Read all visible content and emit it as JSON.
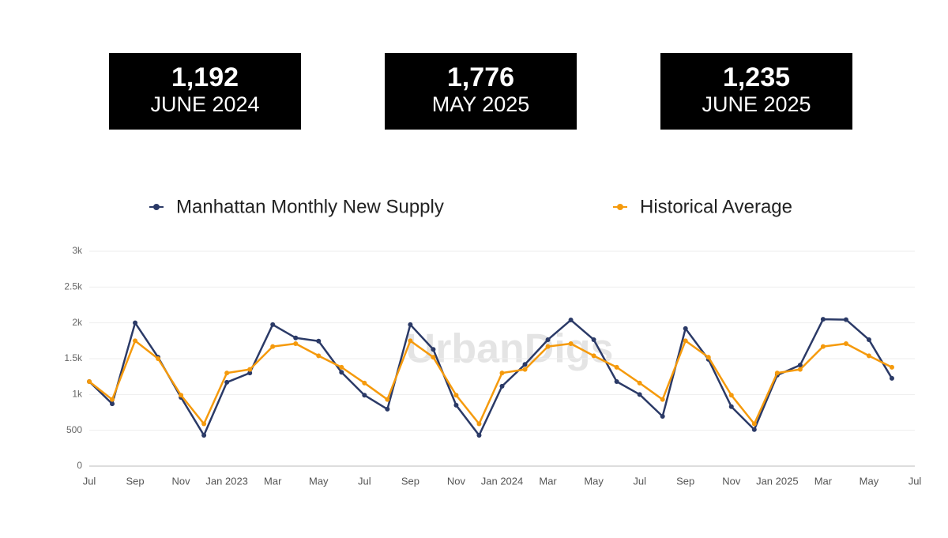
{
  "kpis": [
    {
      "value": "1,192",
      "label": "JUNE 2024"
    },
    {
      "value": "1,776",
      "label": "MAY 2025"
    },
    {
      "value": "1,235",
      "label": "JUNE 2025"
    }
  ],
  "chart_data": {
    "type": "line",
    "watermark": "UrbanDigs",
    "categories": [
      "Jul",
      null,
      "Sep",
      null,
      "Nov",
      null,
      "Jan 2023",
      null,
      "Mar",
      null,
      "May",
      null,
      "Jul",
      null,
      "Sep",
      null,
      "Nov",
      null,
      "Jan 2024",
      null,
      "Mar",
      null,
      "May",
      null,
      "Jul",
      null,
      "Sep",
      null,
      "Nov",
      null,
      "Jan 2025",
      null,
      "Mar",
      null,
      "May",
      null,
      "Jul"
    ],
    "series": [
      {
        "name": "Manhattan Monthly New Supply",
        "color": "#2b3a67",
        "values": [
          1180,
          870,
          2000,
          1520,
          960,
          430,
          1170,
          1300,
          1975,
          1790,
          1745,
          1310,
          990,
          795,
          1975,
          1630,
          850,
          430,
          1115,
          1420,
          1765,
          2040,
          1765,
          1180,
          1000,
          695,
          1920,
          1490,
          830,
          510,
          1270,
          1410,
          2050,
          2045,
          1765,
          1225,
          null
        ]
      },
      {
        "name": "Historical Average",
        "color": "#f59a0c",
        "values": [
          1180,
          930,
          1750,
          1500,
          990,
          590,
          1300,
          1350,
          1670,
          1710,
          1540,
          1380,
          1160,
          930,
          1750,
          1520,
          990,
          590,
          1300,
          1350,
          1670,
          1710,
          1540,
          1380,
          1160,
          930,
          1750,
          1520,
          990,
          590,
          1300,
          1350,
          1670,
          1710,
          1540,
          1380,
          null
        ]
      }
    ],
    "ylim": [
      0,
      3000
    ],
    "yticks": [
      0,
      500,
      {
        "value": 1000,
        "label": "1k"
      },
      {
        "value": 1500,
        "label": "1.5k"
      },
      {
        "value": 2000,
        "label": "2k"
      },
      {
        "value": 2500,
        "label": "2.5k"
      },
      {
        "value": 3000,
        "label": "3k"
      }
    ],
    "grid": true
  }
}
